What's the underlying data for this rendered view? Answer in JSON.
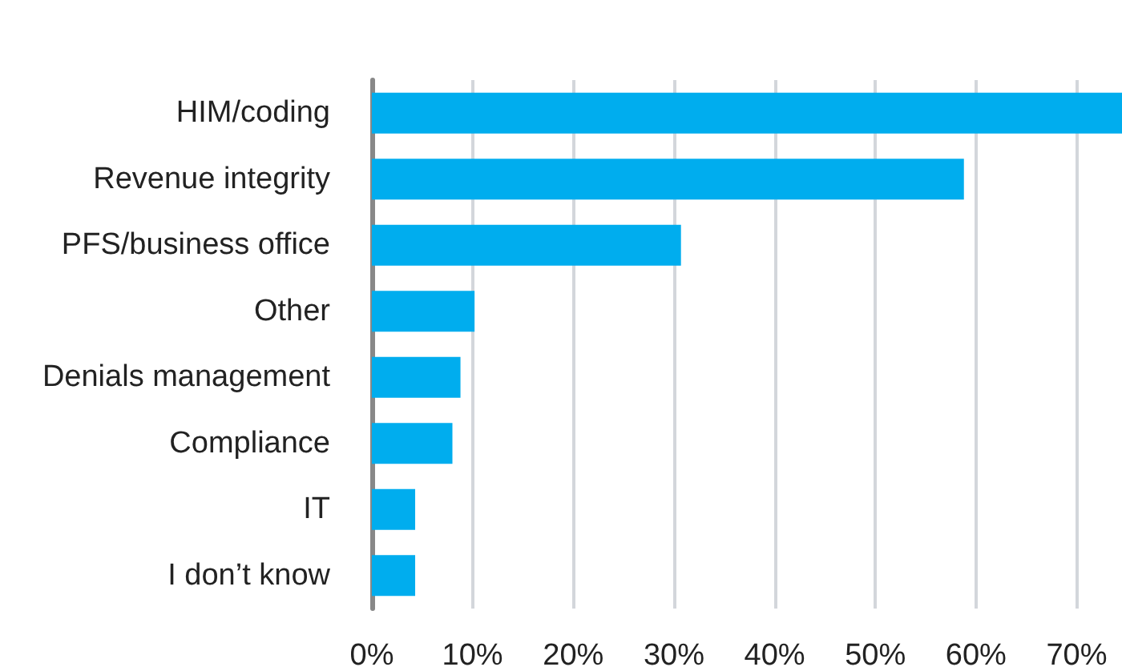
{
  "chart_data": {
    "type": "bar",
    "orientation": "horizontal",
    "categories": [
      "HIM/coding",
      "Revenue integrity",
      "PFS/business office",
      "Other",
      "Denials management",
      "Compliance",
      "IT",
      "I don’t know"
    ],
    "values": [
      74.5,
      58.8,
      30.7,
      10.2,
      8.8,
      8.0,
      4.3,
      4.3
    ],
    "color": "#00adee",
    "xlim": [
      0,
      74.5
    ],
    "xticks": [
      {
        "value": 0,
        "label": "0%"
      },
      {
        "value": 10,
        "label": "10%"
      },
      {
        "value": 20,
        "label": "20%"
      },
      {
        "value": 30,
        "label": "30%"
      },
      {
        "value": 40,
        "label": "40%"
      },
      {
        "value": 50,
        "label": "50%"
      },
      {
        "value": 60,
        "label": "60%"
      },
      {
        "value": 70,
        "label": "70%"
      }
    ],
    "grid": "x"
  }
}
